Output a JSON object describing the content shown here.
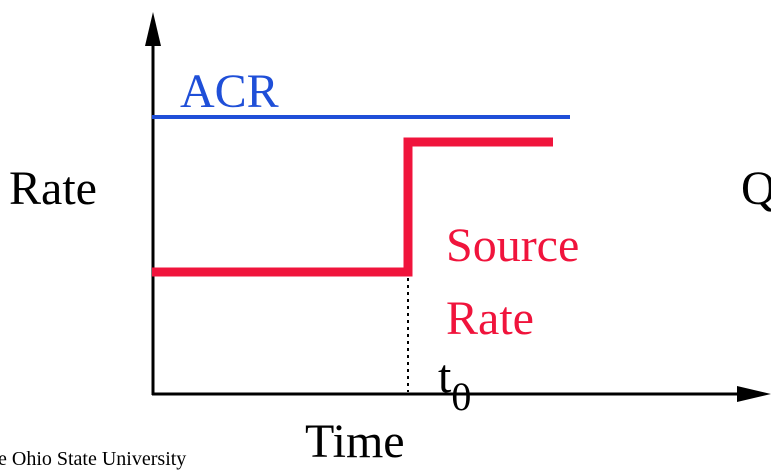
{
  "diagram": {
    "y_axis_label": "Rate",
    "x_axis_label": "Time",
    "acr_label": "ACR",
    "source_rate_label": [
      "Source",
      "Rate"
    ],
    "time_marker": {
      "base": "t",
      "subscript": "0"
    },
    "clipped_right_label": "Q",
    "footer_text": "e Ohio State University",
    "colors": {
      "acr": "#1f4fd8",
      "source_rate": "#f0143c",
      "axes": "#000000",
      "text": "#000000"
    }
  }
}
